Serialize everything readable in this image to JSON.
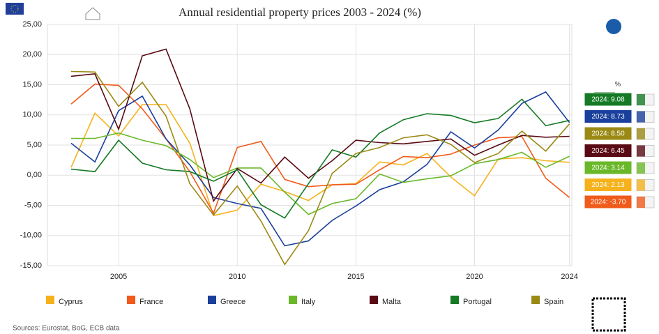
{
  "chart_data": {
    "type": "line",
    "title": "Annual residential property prices 2003 - 2024 (%)",
    "x": [
      2003,
      2004,
      2005,
      2006,
      2007,
      2008,
      2009,
      2010,
      2011,
      2012,
      2013,
      2014,
      2015,
      2016,
      2017,
      2018,
      2019,
      2020,
      2021,
      2022,
      2023,
      2024
    ],
    "xlim": [
      2002,
      2024.1
    ],
    "xticks": [
      2005,
      2010,
      2015,
      2020,
      2024
    ],
    "ylim": [
      -15,
      25
    ],
    "yticks": [
      {
        "value": -15,
        "label": "-15,00"
      },
      {
        "value": -10,
        "label": "-10,00"
      },
      {
        "value": -5,
        "label": "-5,00"
      },
      {
        "value": 0,
        "label": "0,00"
      },
      {
        "value": 5,
        "label": "5,00"
      },
      {
        "value": 10,
        "label": "10,00"
      },
      {
        "value": 15,
        "label": "15,00"
      },
      {
        "value": 20,
        "label": "20,00"
      },
      {
        "value": 25,
        "label": "25,00"
      }
    ],
    "grid": true,
    "series": [
      {
        "name": "Cyprus",
        "color": "#f5b21c",
        "values": [
          1.3,
          10.3,
          6.5,
          11.7,
          11.7,
          5.3,
          -6.7,
          -5.8,
          -1.5,
          -2.7,
          -4.2,
          -1.6,
          -1.4,
          2.2,
          1.7,
          3.6,
          -0.3,
          -3.4,
          2.7,
          2.9,
          2.4,
          2.13
        ]
      },
      {
        "name": "France",
        "color": "#f05a1a",
        "values": [
          11.8,
          15.1,
          14.9,
          11.0,
          6.0,
          0.6,
          -6.3,
          4.6,
          5.6,
          -0.7,
          -1.9,
          -1.6,
          -1.5,
          0.9,
          3.1,
          2.9,
          3.5,
          5.0,
          6.2,
          6.4,
          -0.5,
          -3.7
        ]
      },
      {
        "name": "Greece",
        "color": "#1a3f9c",
        "values": [
          5.3,
          2.2,
          10.7,
          13.1,
          6.0,
          1.7,
          -3.7,
          -4.7,
          -5.5,
          -11.7,
          -10.9,
          -7.5,
          -5.1,
          -2.4,
          -1.1,
          1.8,
          7.2,
          4.5,
          7.5,
          11.9,
          13.8,
          8.73
        ]
      },
      {
        "name": "Italy",
        "color": "#6ab82a",
        "values": [
          6.1,
          6.1,
          7.0,
          5.8,
          4.9,
          2.6,
          -0.4,
          1.2,
          1.2,
          -2.8,
          -6.5,
          -4.7,
          -3.9,
          0.2,
          -1.2,
          -0.6,
          -0.1,
          1.9,
          2.6,
          3.8,
          1.3,
          3.14
        ]
      },
      {
        "name": "Malta",
        "color": "#5a0a14",
        "values": [
          16.4,
          16.8,
          7.6,
          19.8,
          20.9,
          11.0,
          -4.3,
          1.1,
          -1.3,
          3.0,
          -0.5,
          2.4,
          5.8,
          5.4,
          5.2,
          5.6,
          6.0,
          3.3,
          5.0,
          6.6,
          6.3,
          6.45
        ]
      },
      {
        "name": "Portugal",
        "color": "#157a25",
        "values": [
          1.0,
          0.6,
          5.8,
          2.0,
          0.9,
          0.6,
          -1.0,
          0.9,
          -4.9,
          -7.1,
          -1.4,
          4.2,
          3.0,
          7.0,
          9.2,
          10.2,
          9.9,
          8.7,
          9.4,
          12.6,
          8.2,
          9.08
        ]
      },
      {
        "name": "Spain",
        "color": "#9a8a14",
        "values": [
          17.2,
          17.1,
          11.4,
          15.4,
          9.8,
          -1.4,
          -6.6,
          -1.8,
          -7.6,
          -14.8,
          -9.2,
          0.3,
          3.6,
          4.6,
          6.2,
          6.7,
          5.1,
          2.1,
          3.6,
          7.3,
          4.0,
          8.5
        ]
      }
    ],
    "summary_unit": "%",
    "summary": [
      {
        "label": "2024: 9.08",
        "color": "#157a25"
      },
      {
        "label": "2024: 8.73",
        "color": "#1a3f9c"
      },
      {
        "label": "2024: 8.50",
        "color": "#9a8a14"
      },
      {
        "label": "2024: 6.45",
        "color": "#5a0a14"
      },
      {
        "label": "2024: 3.14",
        "color": "#6ab82a"
      },
      {
        "label": "2024: 2.13",
        "color": "#f5b21c"
      },
      {
        "label": "2024: -3.70",
        "color": "#f05a1a"
      }
    ],
    "source": "Sources: Eurostat, BoG, ECB data"
  }
}
